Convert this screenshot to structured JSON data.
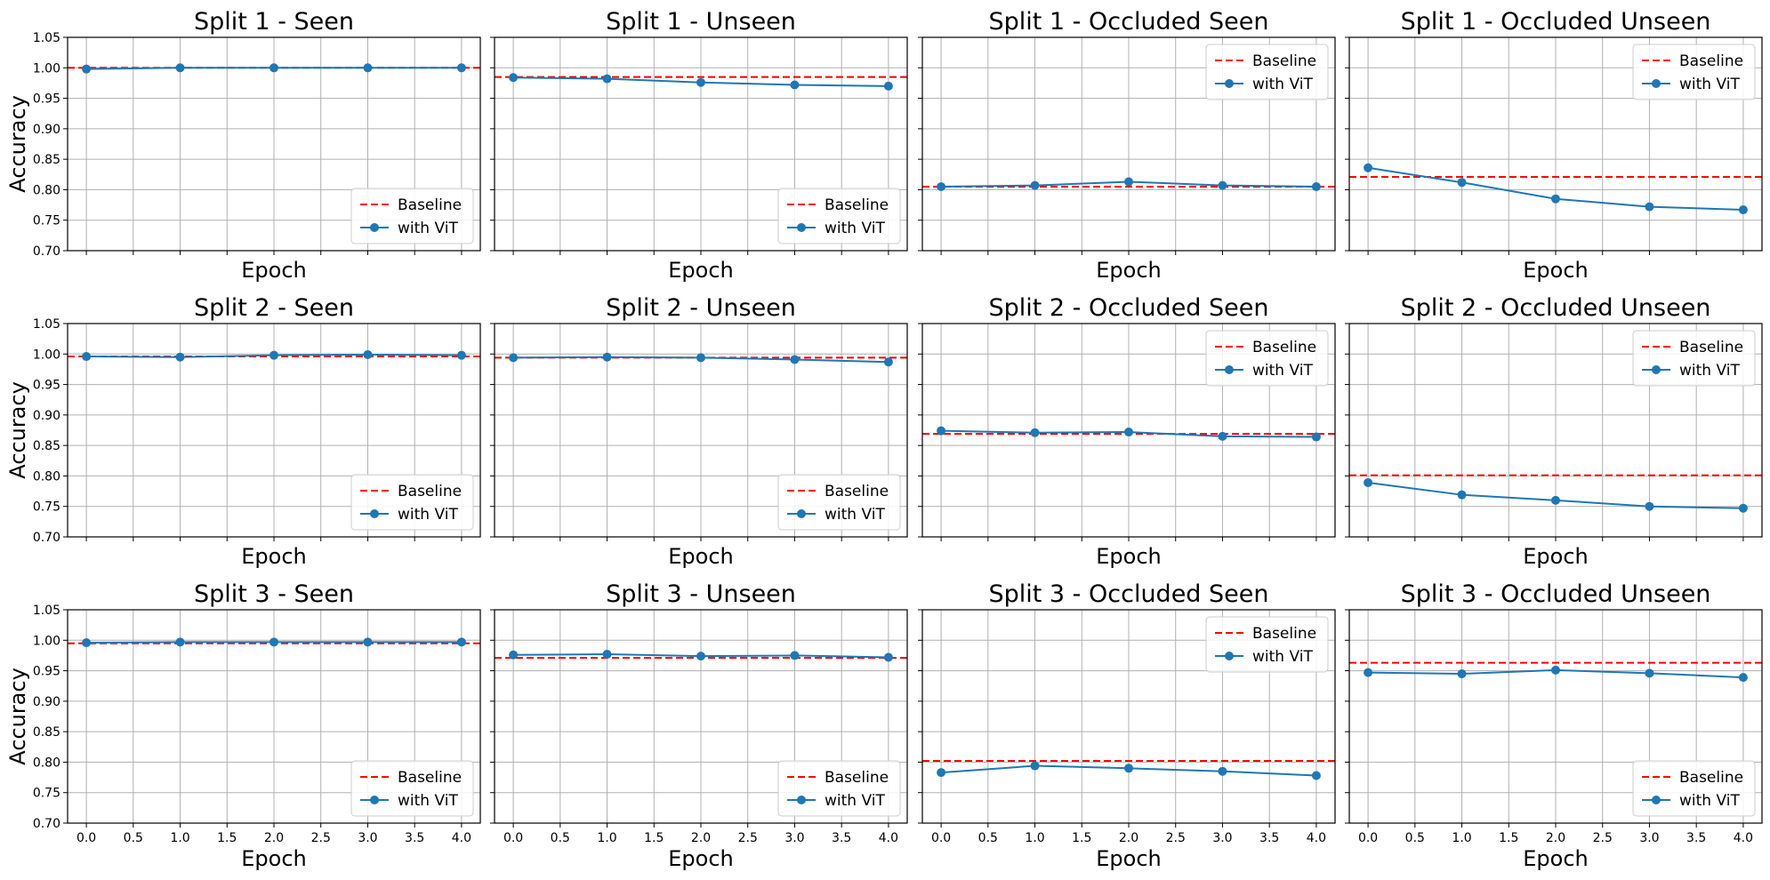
{
  "chart_data": {
    "type": "line",
    "grid": true,
    "shared_axes": {
      "xlabel": "Epoch",
      "ylabel": "Accuracy",
      "xlim": [
        -0.2,
        4.2
      ],
      "ylim": [
        0.7,
        1.05
      ],
      "xticks": [
        "0.0",
        "0.5",
        "1.0",
        "1.5",
        "2.0",
        "2.5",
        "3.0",
        "3.5",
        "4.0"
      ],
      "yticks": [
        "0.70",
        "0.75",
        "0.80",
        "0.85",
        "0.90",
        "0.95",
        "1.00",
        "1.05"
      ]
    },
    "x": [
      0,
      1,
      2,
      3,
      4
    ],
    "colors": {
      "baseline": "#ff0000",
      "vit": "#1f77b4"
    },
    "legend_labels": {
      "baseline": "Baseline",
      "vit": "with ViT"
    },
    "panels": [
      {
        "title": "Split 1 - Seen",
        "legend": "lower-right",
        "baseline": 1.0,
        "vit": [
          0.998,
          1.0,
          1.0,
          1.0,
          1.0
        ]
      },
      {
        "title": "Split 1 - Unseen",
        "legend": "lower-right",
        "baseline": 0.985,
        "vit": [
          0.984,
          0.982,
          0.976,
          0.972,
          0.97
        ]
      },
      {
        "title": "Split 1 - Occluded Seen",
        "legend": "upper-right",
        "baseline": 0.805,
        "vit": [
          0.805,
          0.807,
          0.813,
          0.807,
          0.805
        ]
      },
      {
        "title": "Split 1 - Occluded Unseen",
        "legend": "upper-right",
        "baseline": 0.821,
        "vit": [
          0.836,
          0.812,
          0.785,
          0.772,
          0.767
        ]
      },
      {
        "title": "Split 2 - Seen",
        "legend": "lower-right",
        "baseline": 0.996,
        "vit": [
          0.996,
          0.995,
          0.998,
          0.999,
          0.998
        ]
      },
      {
        "title": "Split 2 - Unseen",
        "legend": "lower-right",
        "baseline": 0.994,
        "vit": [
          0.994,
          0.995,
          0.994,
          0.991,
          0.987
        ]
      },
      {
        "title": "Split 2 - Occluded Seen",
        "legend": "upper-right",
        "baseline": 0.869,
        "vit": [
          0.874,
          0.871,
          0.872,
          0.865,
          0.864
        ]
      },
      {
        "title": "Split 2 - Occluded Unseen",
        "legend": "upper-right",
        "baseline": 0.801,
        "vit": [
          0.789,
          0.769,
          0.76,
          0.75,
          0.747
        ]
      },
      {
        "title": "Split 3 - Seen",
        "legend": "lower-right",
        "baseline": 0.995,
        "vit": [
          0.996,
          0.997,
          0.997,
          0.997,
          0.997
        ]
      },
      {
        "title": "Split 3 - Unseen",
        "legend": "lower-right",
        "baseline": 0.971,
        "vit": [
          0.976,
          0.977,
          0.974,
          0.975,
          0.972
        ]
      },
      {
        "title": "Split 3 - Occluded Seen",
        "legend": "upper-right",
        "baseline": 0.802,
        "vit": [
          0.783,
          0.794,
          0.79,
          0.785,
          0.778
        ]
      },
      {
        "title": "Split 3 - Occluded Unseen",
        "legend": "lower-right",
        "baseline": 0.963,
        "vit": [
          0.947,
          0.945,
          0.951,
          0.946,
          0.939
        ]
      }
    ]
  }
}
